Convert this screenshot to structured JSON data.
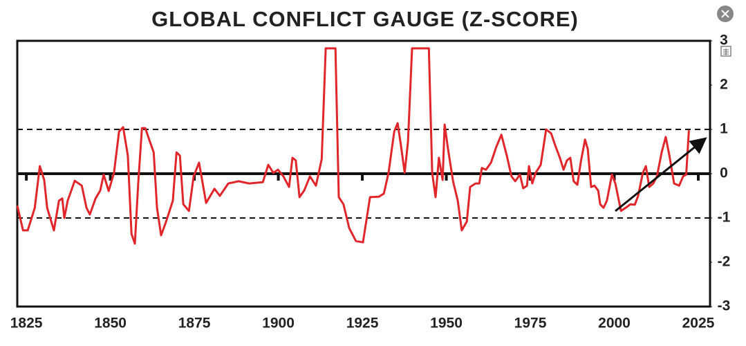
{
  "chart_data": {
    "type": "line",
    "title": "GLOBAL CONFLICT GAUGE (Z-SCORE)",
    "color": "#e0252b",
    "x": [
      1822.3,
      1824,
      1825.4,
      1827.5,
      1829,
      1830.3,
      1831.2,
      1833.2,
      1834.7,
      1835.7,
      1836.3,
      1837.3,
      1839.4,
      1841.5,
      1842.9,
      1843.9,
      1845.6,
      1847,
      1848,
      1849.5,
      1851.1,
      1852.6,
      1853.8,
      1855.2,
      1856.3,
      1857.3,
      1858.3,
      1859.4,
      1860.4,
      1861.8,
      1862.9,
      1863.9,
      1865.1,
      1866.6,
      1868.6,
      1869.7,
      1870.7,
      1871.7,
      1873.4,
      1874.8,
      1876.4,
      1878.5,
      1881,
      1882.6,
      1885.1,
      1888.2,
      1891.3,
      1895.4,
      1897,
      1898.5,
      1899.9,
      1901.5,
      1903.2,
      1904.2,
      1905.2,
      1906.3,
      1907.7,
      1909.4,
      1911.2,
      1912.9,
      1914.1,
      1917,
      1918,
      1919.4,
      1921.1,
      1923.1,
      1925.2,
      1927.3,
      1929.9,
      1931.4,
      1932.8,
      1934.5,
      1935.5,
      1936.5,
      1937.6,
      1938.6,
      1939.8,
      1944.8,
      1945.8,
      1946.8,
      1947.8,
      1948.9,
      1949.5,
      1950.5,
      1952,
      1953.4,
      1954.6,
      1956.1,
      1957.1,
      1958.7,
      1959.8,
      1960.6,
      1961.8,
      1963.3,
      1964.9,
      1966.4,
      1968,
      1969.4,
      1970.5,
      1971.9,
      1972.9,
      1974,
      1974.6,
      1975.6,
      1976.6,
      1978.1,
      1979.7,
      1981.2,
      1982.4,
      1983.8,
      1984.9,
      1985.9,
      1986.9,
      1987.9,
      1989,
      1990,
      1991.3,
      1992.1,
      1993.1,
      1994.1,
      1995.2,
      1995.8,
      1996.8,
      1997.8,
      1999.3,
      2000.3,
      2002,
      2003.4,
      2004.8,
      2006.1,
      2007.1,
      2008.5,
      2009.4,
      2010.4,
      2011.6,
      2012.7,
      2014.1,
      2015.3,
      2016.4,
      2017.8,
      2019.3,
      2020.5,
      2021.4,
      2022.2
    ],
    "values": [
      -0.72,
      -1.28,
      -1.28,
      -0.77,
      0.17,
      -0.14,
      -0.77,
      -1.28,
      -0.61,
      -0.56,
      -1.0,
      -0.61,
      -0.16,
      -0.27,
      -0.77,
      -0.92,
      -0.56,
      -0.38,
      -0.02,
      -0.39,
      0.02,
      0.95,
      1.05,
      0.41,
      -1.36,
      -1.58,
      -0.22,
      1.03,
      1.03,
      0.72,
      0.48,
      -0.77,
      -1.39,
      -1.08,
      -0.61,
      0.48,
      0.41,
      -0.69,
      -0.84,
      -0.06,
      0.25,
      -0.66,
      -0.34,
      -0.5,
      -0.22,
      -0.17,
      -0.22,
      -0.19,
      0.2,
      0.02,
      0.09,
      -0.06,
      -0.3,
      0.36,
      0.3,
      -0.53,
      -0.38,
      -0.06,
      -0.27,
      0.33,
      2.83,
      2.83,
      -0.53,
      -0.69,
      -1.23,
      -1.52,
      -1.55,
      -0.53,
      -0.52,
      -0.45,
      0.02,
      0.95,
      1.14,
      0.64,
      0.02,
      0.72,
      2.83,
      2.83,
      0.02,
      -0.53,
      0.36,
      -0.14,
      1.11,
      0.56,
      -0.17,
      -0.61,
      -1.28,
      -1.08,
      -0.3,
      -0.22,
      -0.22,
      0.13,
      0.09,
      0.25,
      0.61,
      0.88,
      0.41,
      -0.06,
      -0.17,
      -0.02,
      -0.33,
      -0.27,
      0.17,
      -0.22,
      0.02,
      0.2,
      1.0,
      0.91,
      0.64,
      0.36,
      0.09,
      0.3,
      0.36,
      -0.17,
      -0.25,
      0.25,
      0.77,
      0.56,
      -0.3,
      -0.27,
      -0.38,
      -0.69,
      -0.77,
      -0.61,
      -0.02,
      -0.22,
      -0.84,
      -0.77,
      -0.69,
      -0.7,
      -0.5,
      0.02,
      0.17,
      -0.3,
      -0.22,
      -0.06,
      0.48,
      0.83,
      0.41,
      -0.22,
      -0.27,
      -0.06,
      -0.02,
      0.98
    ],
    "xlim": [
      1822.3,
      2028.5
    ],
    "xticks": [
      1825,
      1850,
      1875,
      1900,
      1925,
      1950,
      1975,
      2000,
      2025
    ],
    "ylim": [
      -3,
      3
    ],
    "yticks": [
      -3,
      -2,
      -1,
      0,
      1,
      2,
      3
    ],
    "hlines": [
      {
        "value": -1,
        "style": "dashed"
      },
      {
        "value": 0,
        "style": "solid"
      },
      {
        "value": 1,
        "style": "dashed"
      }
    ]
  }
}
